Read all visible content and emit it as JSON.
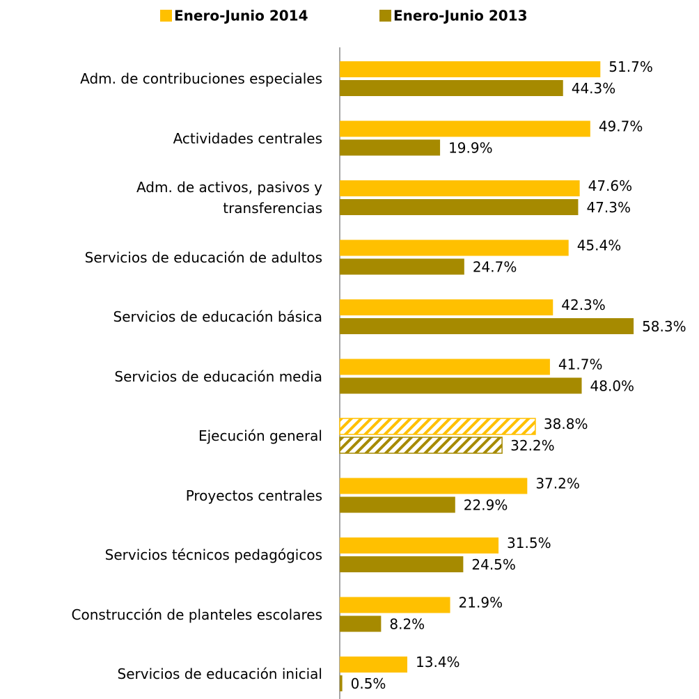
{
  "chart_data": {
    "type": "hbar",
    "categories": [
      "Adm. de contribuciones especiales",
      "Actividades centrales",
      "Adm. de activos, pasivos y\ntransferencias",
      "Servicios de educación de adultos",
      "Servicios de educación básica",
      "Servicios de educación media",
      "Ejecución general",
      "Proyectos centrales",
      "Servicios técnicos pedagógicos",
      "Construcción de planteles escolares",
      "Servicios de educación inicial"
    ],
    "series": [
      {
        "name": "Enero-Junio 2014",
        "color": "#FFC000",
        "values": [
          51.7,
          49.7,
          47.6,
          45.4,
          42.3,
          41.7,
          38.8,
          37.2,
          31.5,
          21.9,
          13.4
        ],
        "value_labels": [
          "51.7%",
          "49.7%",
          "47.6%",
          "45.4%",
          "42.3%",
          "41.7%",
          "38.8%",
          "37.2%",
          "31.5%",
          "21.9%",
          "13.4%"
        ]
      },
      {
        "name": "Enero-Junio 2013",
        "color": "#A68A00",
        "values": [
          44.3,
          19.9,
          47.3,
          24.7,
          58.3,
          48.0,
          32.2,
          22.9,
          24.5,
          8.2,
          0.5
        ],
        "value_labels": [
          "44.3%",
          "19.9%",
          "47.3%",
          "24.7%",
          "58.3%",
          "48.0%",
          "32.2%",
          "22.9%",
          "24.5%",
          "8.2%",
          "0.5%"
        ]
      }
    ],
    "hatched_categories": [
      6
    ],
    "legend": "top"
  }
}
